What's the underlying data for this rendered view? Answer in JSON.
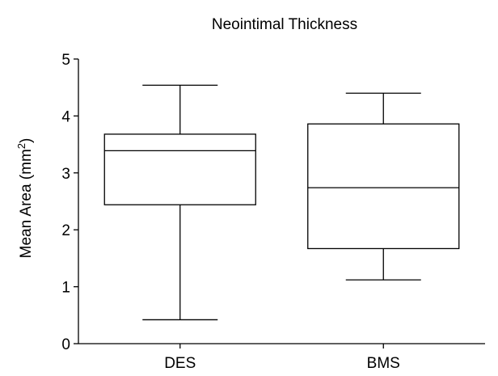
{
  "chart_data": {
    "type": "boxplot",
    "title": "Neointimal Thickness",
    "xlabel": "",
    "ylabel": "Mean Area (mm",
    "ylabel_superscript": "2",
    "ylabel_suffix": ")",
    "ylim": [
      0,
      5
    ],
    "yticks": [
      0,
      1,
      2,
      3,
      4,
      5
    ],
    "grid": false,
    "legend": "none",
    "categories": [
      "DES",
      "BMS"
    ],
    "series": [
      {
        "category": "DES",
        "min": 0.42,
        "q1": 2.44,
        "median": 3.39,
        "q3": 3.68,
        "max": 4.54
      },
      {
        "category": "BMS",
        "min": 1.12,
        "q1": 1.67,
        "median": 2.74,
        "q3": 3.86,
        "max": 4.4
      }
    ]
  }
}
